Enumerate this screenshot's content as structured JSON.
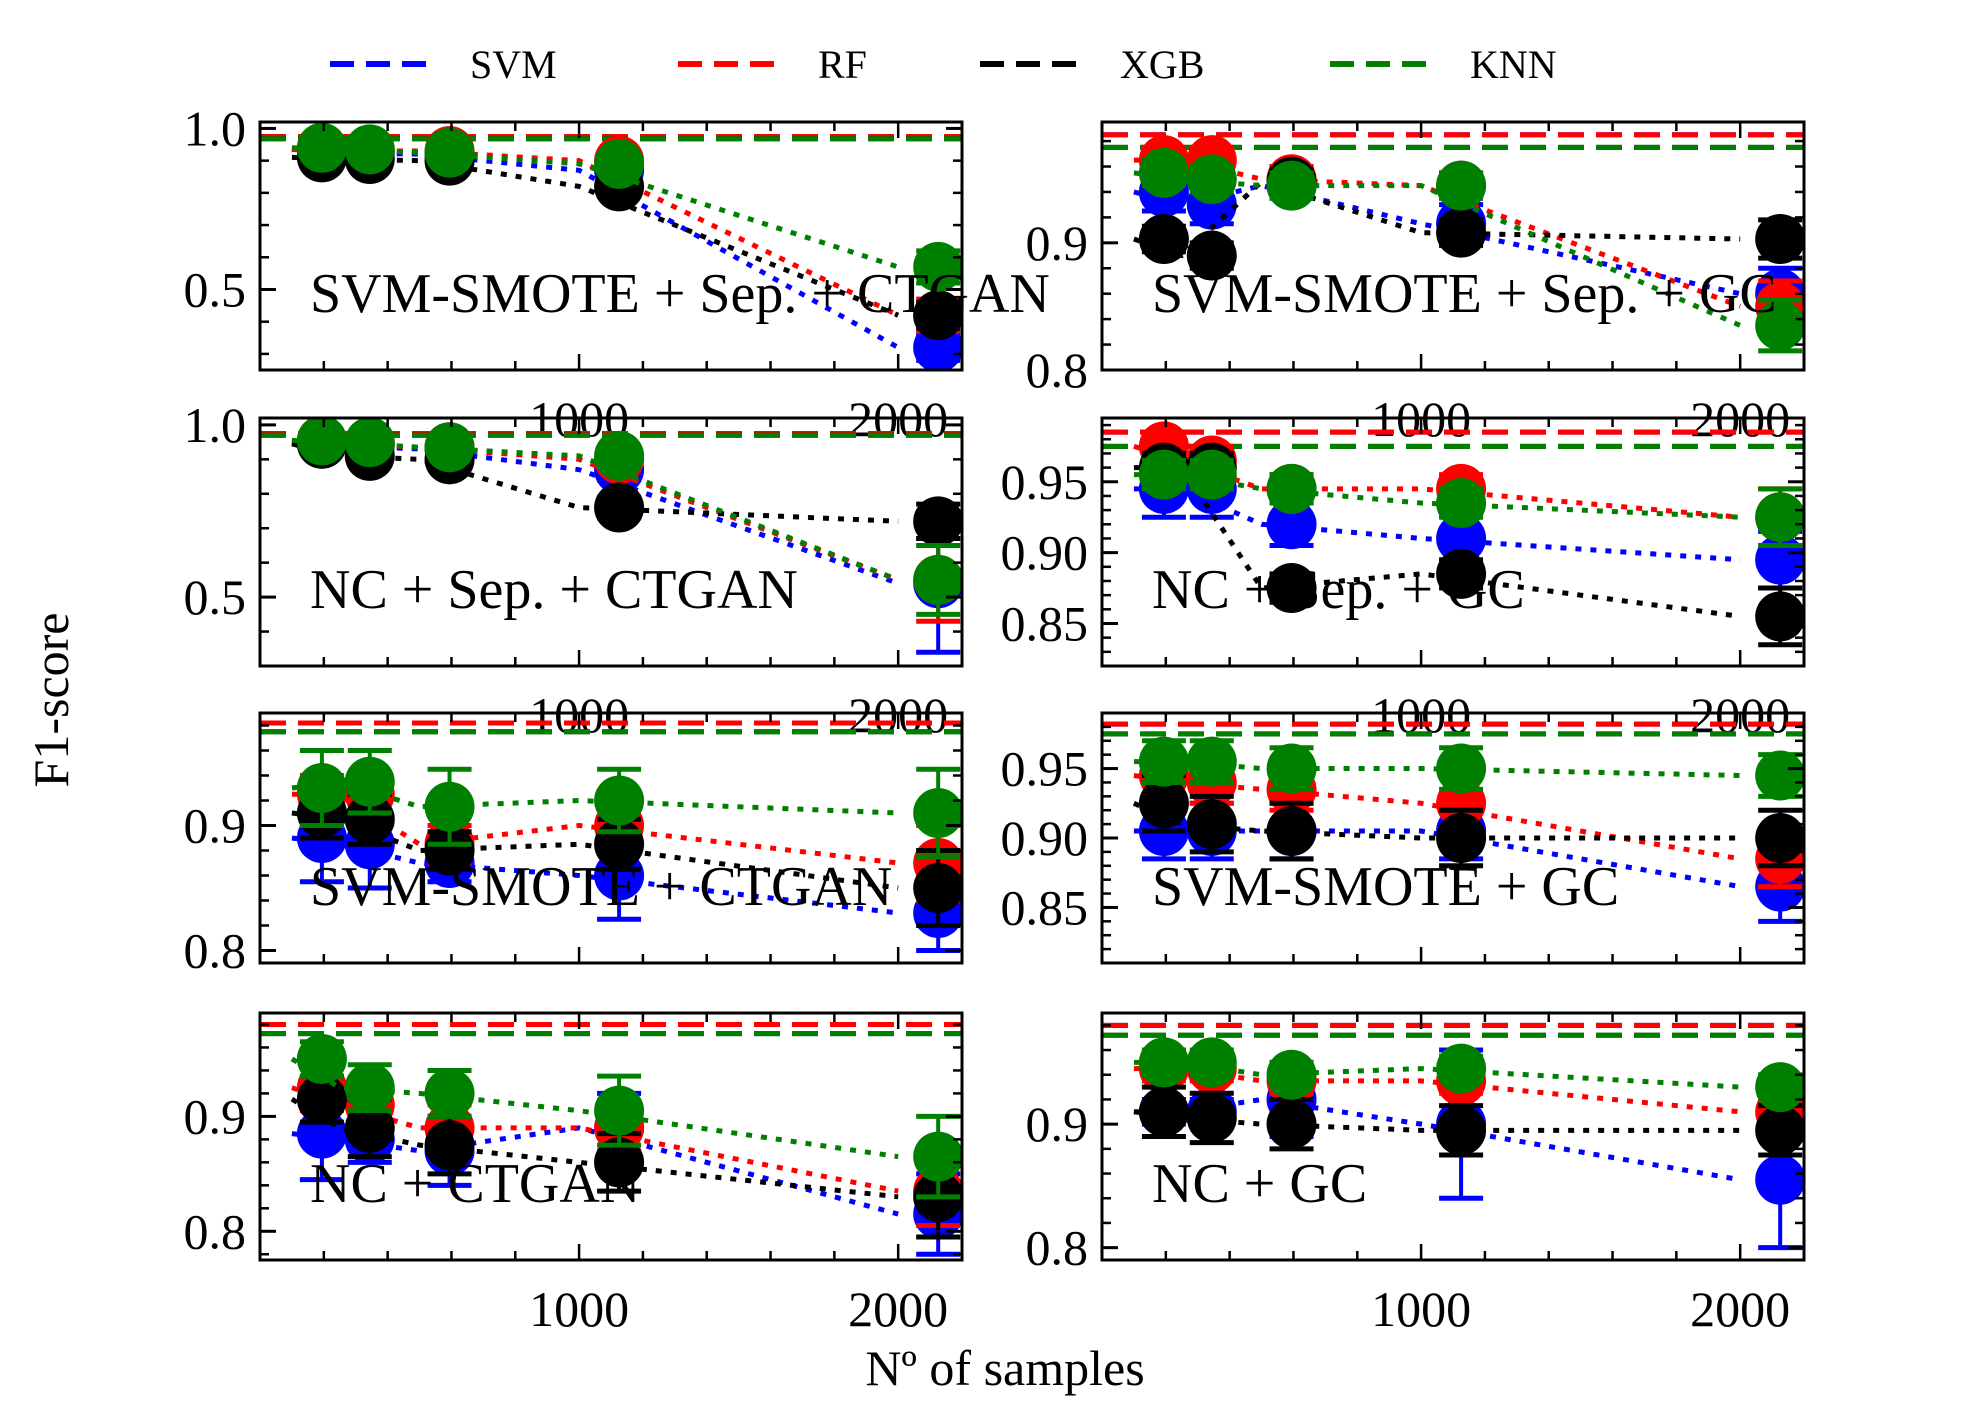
{
  "figure": {
    "ylabel": "F1-score",
    "xlabel": "Nº of samples",
    "legend": [
      {
        "name": "SVM",
        "color": "#0000ff"
      },
      {
        "name": "RF",
        "color": "#ff0000"
      },
      {
        "name": "XGB",
        "color": "#000000"
      },
      {
        "name": "KNN",
        "color": "#008000"
      }
    ]
  },
  "chart_data": [
    {
      "type": "line",
      "label": "SVM-SMOTE + Sep. + CTGAN",
      "x": [
        100,
        250,
        500,
        1000,
        2000
      ],
      "xlim": [
        0,
        2200
      ],
      "xticks": [
        1000,
        2000
      ],
      "ylim": [
        0.25,
        1.02
      ],
      "yticks": [
        0.5,
        1.0
      ],
      "ytick_labels": [
        "0.5",
        "1.0"
      ],
      "baselines": [
        0.975,
        0.975,
        0.968,
        0.968
      ],
      "series": [
        {
          "name": "SVM",
          "values": [
            0.935,
            0.925,
            0.92,
            0.87,
            0.32
          ],
          "err": [
            0.015,
            0.02,
            0.02,
            0.03,
            0.04
          ]
        },
        {
          "name": "RF",
          "values": [
            0.935,
            0.93,
            0.93,
            0.9,
            0.42
          ],
          "err": [
            0.015,
            0.015,
            0.02,
            0.03,
            0.05
          ]
        },
        {
          "name": "XGB",
          "values": [
            0.91,
            0.905,
            0.9,
            0.82,
            0.42
          ],
          "err": [
            0.015,
            0.02,
            0.02,
            0.03,
            0.04
          ]
        },
        {
          "name": "KNN",
          "values": [
            0.94,
            0.935,
            0.925,
            0.89,
            0.57
          ],
          "err": [
            0.01,
            0.01,
            0.015,
            0.02,
            0.05
          ]
        }
      ]
    },
    {
      "type": "line",
      "label": "SVM-SMOTE + Sep. + GC",
      "x": [
        100,
        250,
        500,
        1000,
        2000
      ],
      "xlim": [
        0,
        2200
      ],
      "xticks": [
        1000,
        2000
      ],
      "ylim": [
        0.8,
        0.995
      ],
      "yticks": [
        0.8,
        0.9
      ],
      "ytick_labels": [
        "0.8",
        "0.9"
      ],
      "baselines": [
        0.985,
        0.985,
        0.975,
        0.975
      ],
      "series": [
        {
          "name": "SVM",
          "values": [
            0.94,
            0.93,
            0.945,
            0.915,
            0.86
          ],
          "err": [
            0.015,
            0.015,
            0.01,
            0.015,
            0.02
          ]
        },
        {
          "name": "RF",
          "values": [
            0.965,
            0.965,
            0.95,
            0.945,
            0.85
          ],
          "err": [
            0.01,
            0.01,
            0.01,
            0.01,
            0.02
          ]
        },
        {
          "name": "XGB",
          "values": [
            0.903,
            0.89,
            0.948,
            0.908,
            0.903
          ],
          "err": [
            0.01,
            0.01,
            0.01,
            0.01,
            0.015
          ]
        },
        {
          "name": "KNN",
          "values": [
            0.955,
            0.95,
            0.945,
            0.945,
            0.835
          ],
          "err": [
            0.01,
            0.01,
            0.01,
            0.01,
            0.02
          ]
        }
      ]
    },
    {
      "type": "line",
      "label": "NC + Sep. + CTGAN",
      "x": [
        100,
        250,
        500,
        1000,
        2000
      ],
      "xlim": [
        0,
        2200
      ],
      "xticks": [
        1000,
        2000
      ],
      "ylim": [
        0.3,
        1.02
      ],
      "yticks": [
        0.5,
        1.0
      ],
      "ytick_labels": [
        "0.5",
        "1.0"
      ],
      "baselines": [
        0.975,
        0.975,
        0.97,
        0.97
      ],
      "series": [
        {
          "name": "SVM",
          "values": [
            0.95,
            0.94,
            0.93,
            0.87,
            0.54
          ],
          "err": [
            0.01,
            0.015,
            0.02,
            0.03,
            0.2
          ]
        },
        {
          "name": "RF",
          "values": [
            0.955,
            0.945,
            0.935,
            0.9,
            0.55
          ],
          "err": [
            0.01,
            0.015,
            0.02,
            0.03,
            0.12
          ]
        },
        {
          "name": "XGB",
          "values": [
            0.945,
            0.91,
            0.9,
            0.76,
            0.72
          ],
          "err": [
            0.01,
            0.02,
            0.02,
            0.03,
            0.05
          ]
        },
        {
          "name": "KNN",
          "values": [
            0.955,
            0.95,
            0.935,
            0.91,
            0.55
          ],
          "err": [
            0.01,
            0.01,
            0.015,
            0.02,
            0.1
          ]
        }
      ]
    },
    {
      "type": "line",
      "label": "NC + Sep. + GC",
      "x": [
        100,
        250,
        500,
        1000,
        2000
      ],
      "xlim": [
        0,
        2200
      ],
      "xticks": [
        1000,
        2000
      ],
      "ylim": [
        0.82,
        0.995
      ],
      "yticks": [
        0.85,
        0.9,
        0.95
      ],
      "ytick_labels": [
        "0.85",
        "0.90",
        "0.95"
      ],
      "baselines": [
        0.985,
        0.985,
        0.975,
        0.975
      ],
      "series": [
        {
          "name": "SVM",
          "values": [
            0.945,
            0.945,
            0.92,
            0.91,
            0.895
          ],
          "err": [
            0.02,
            0.02,
            0.015,
            0.02,
            0.02
          ]
        },
        {
          "name": "RF",
          "values": [
            0.975,
            0.965,
            0.945,
            0.945,
            0.925
          ],
          "err": [
            0.01,
            0.01,
            0.01,
            0.01,
            0.02
          ]
        },
        {
          "name": "XGB",
          "values": [
            0.96,
            0.96,
            0.875,
            0.885,
            0.855
          ],
          "err": [
            0.01,
            0.01,
            0.01,
            0.01,
            0.02
          ]
        },
        {
          "name": "KNN",
          "values": [
            0.955,
            0.955,
            0.945,
            0.935,
            0.925
          ],
          "err": [
            0.01,
            0.01,
            0.01,
            0.01,
            0.02
          ]
        }
      ]
    },
    {
      "type": "line",
      "label": "SVM-SMOTE + CTGAN",
      "x": [
        100,
        250,
        500,
        1000,
        2000
      ],
      "xlim": [
        0,
        2200
      ],
      "xticks": [],
      "ylim": [
        0.79,
        0.99
      ],
      "yticks": [
        0.8,
        0.9
      ],
      "ytick_labels": [
        "0.8",
        "0.9"
      ],
      "baselines": [
        0.982,
        0.982,
        0.975,
        0.975
      ],
      "series": [
        {
          "name": "SVM",
          "values": [
            0.89,
            0.885,
            0.87,
            0.86,
            0.83
          ],
          "err": [
            0.035,
            0.035,
            0.015,
            0.035,
            0.03
          ]
        },
        {
          "name": "RF",
          "values": [
            0.925,
            0.925,
            0.885,
            0.9,
            0.87
          ],
          "err": [
            0.015,
            0.015,
            0.015,
            0.02,
            0.03
          ]
        },
        {
          "name": "XGB",
          "values": [
            0.91,
            0.905,
            0.88,
            0.885,
            0.85
          ],
          "err": [
            0.02,
            0.02,
            0.015,
            0.02,
            0.03
          ]
        },
        {
          "name": "KNN",
          "values": [
            0.93,
            0.935,
            0.915,
            0.92,
            0.91
          ],
          "err": [
            0.03,
            0.025,
            0.03,
            0.025,
            0.035
          ]
        }
      ]
    },
    {
      "type": "line",
      "label": "SVM-SMOTE + GC",
      "x": [
        100,
        250,
        500,
        1000,
        2000
      ],
      "xlim": [
        0,
        2200
      ],
      "xticks": [],
      "ylim": [
        0.81,
        0.99
      ],
      "yticks": [
        0.85,
        0.9,
        0.95
      ],
      "ytick_labels": [
        "0.85",
        "0.90",
        "0.95"
      ],
      "baselines": [
        0.982,
        0.982,
        0.975,
        0.975
      ],
      "series": [
        {
          "name": "SVM",
          "values": [
            0.905,
            0.905,
            0.905,
            0.905,
            0.865
          ],
          "err": [
            0.02,
            0.02,
            0.02,
            0.02,
            0.025
          ]
        },
        {
          "name": "RF",
          "values": [
            0.945,
            0.94,
            0.935,
            0.925,
            0.885
          ],
          "err": [
            0.015,
            0.015,
            0.015,
            0.02,
            0.02
          ]
        },
        {
          "name": "XGB",
          "values": [
            0.925,
            0.91,
            0.905,
            0.9,
            0.9
          ],
          "err": [
            0.02,
            0.02,
            0.02,
            0.02,
            0.02
          ]
        },
        {
          "name": "KNN",
          "values": [
            0.955,
            0.955,
            0.95,
            0.95,
            0.945
          ],
          "err": [
            0.015,
            0.015,
            0.015,
            0.015,
            0.015
          ]
        }
      ]
    },
    {
      "type": "line",
      "label": "NC + CTGAN",
      "x": [
        100,
        250,
        500,
        1000,
        2000
      ],
      "xlim": [
        0,
        2200
      ],
      "xticks": [
        1000,
        2000
      ],
      "ylim": [
        0.775,
        0.99
      ],
      "yticks": [
        0.8,
        0.9
      ],
      "ytick_labels": [
        "0.8",
        "0.9"
      ],
      "baselines": [
        0.98,
        0.98,
        0.972,
        0.972
      ],
      "series": [
        {
          "name": "SVM",
          "values": [
            0.885,
            0.88,
            0.87,
            0.89,
            0.815
          ],
          "err": [
            0.04,
            0.02,
            0.03,
            0.03,
            0.035
          ]
        },
        {
          "name": "RF",
          "values": [
            0.925,
            0.91,
            0.89,
            0.89,
            0.835
          ],
          "err": [
            0.02,
            0.02,
            0.02,
            0.02,
            0.03
          ]
        },
        {
          "name": "XGB",
          "values": [
            0.915,
            0.89,
            0.875,
            0.86,
            0.83
          ],
          "err": [
            0.02,
            0.025,
            0.025,
            0.025,
            0.035
          ]
        },
        {
          "name": "KNN",
          "values": [
            0.95,
            0.925,
            0.92,
            0.905,
            0.865
          ],
          "err": [
            0.015,
            0.02,
            0.02,
            0.03,
            0.035
          ]
        }
      ]
    },
    {
      "type": "line",
      "label": "NC + GC",
      "x": [
        100,
        250,
        500,
        1000,
        2000
      ],
      "xlim": [
        0,
        2200
      ],
      "xticks": [
        1000,
        2000
      ],
      "ylim": [
        0.79,
        0.99
      ],
      "yticks": [
        0.8,
        0.9
      ],
      "ytick_labels": [
        "0.8",
        "0.9"
      ],
      "baselines": [
        0.98,
        0.98,
        0.972,
        0.972
      ],
      "series": [
        {
          "name": "SVM",
          "values": [
            0.91,
            0.91,
            0.92,
            0.9,
            0.855
          ],
          "err": [
            0.01,
            0.01,
            0.03,
            0.06,
            0.055
          ]
        },
        {
          "name": "RF",
          "values": [
            0.945,
            0.945,
            0.935,
            0.935,
            0.91
          ],
          "err": [
            0.01,
            0.01,
            0.01,
            0.01,
            0.015
          ]
        },
        {
          "name": "XGB",
          "values": [
            0.91,
            0.905,
            0.9,
            0.895,
            0.895
          ],
          "err": [
            0.02,
            0.02,
            0.02,
            0.02,
            0.02
          ]
        },
        {
          "name": "KNN",
          "values": [
            0.95,
            0.95,
            0.94,
            0.945,
            0.93
          ],
          "err": [
            0.01,
            0.01,
            0.01,
            0.01,
            0.01
          ]
        }
      ]
    }
  ]
}
